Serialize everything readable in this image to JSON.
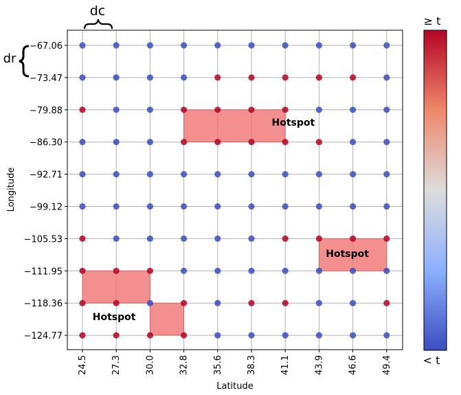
{
  "chart_data": {
    "type": "scatter",
    "title": "",
    "xlabel": "Latitude",
    "ylabel": "Longitude",
    "x_ticks": [
      "24.5",
      "27.3",
      "30.0",
      "32.8",
      "35.6",
      "38.3",
      "41.1",
      "43.9",
      "46.6",
      "49.4"
    ],
    "y_ticks": [
      "−67.06",
      "−73.47",
      "−79.88",
      "−86.30",
      "−92.71",
      "−99.12",
      "−105.53",
      "−111.95",
      "−118.36",
      "−124.77"
    ],
    "x_values": [
      24.5,
      27.3,
      30.0,
      32.8,
      35.6,
      38.3,
      41.1,
      43.9,
      46.6,
      49.4
    ],
    "y_values": [
      -67.06,
      -73.47,
      -79.88,
      -86.3,
      -92.71,
      -99.12,
      -105.53,
      -111.95,
      -118.36,
      -124.77
    ],
    "grid": true,
    "colorbar": {
      "top_label": "≥ t",
      "bottom_label": "< t",
      "cmap": "coolwarm"
    },
    "high_points": [
      [
        1,
        4
      ],
      [
        1,
        5
      ],
      [
        1,
        6
      ],
      [
        1,
        7
      ],
      [
        1,
        8
      ],
      [
        2,
        0
      ],
      [
        2,
        3
      ],
      [
        2,
        4
      ],
      [
        2,
        5
      ],
      [
        2,
        6
      ],
      [
        3,
        3
      ],
      [
        3,
        4
      ],
      [
        3,
        5
      ],
      [
        3,
        6
      ],
      [
        3,
        7
      ],
      [
        6,
        0
      ],
      [
        6,
        6
      ],
      [
        6,
        7
      ],
      [
        6,
        8
      ],
      [
        6,
        9
      ],
      [
        7,
        0
      ],
      [
        7,
        1
      ],
      [
        7,
        2
      ],
      [
        8,
        0
      ],
      [
        8,
        1
      ],
      [
        8,
        3
      ],
      [
        8,
        5
      ],
      [
        8,
        6
      ],
      [
        8,
        9
      ],
      [
        9,
        0
      ],
      [
        9,
        1
      ],
      [
        9,
        2
      ],
      [
        9,
        3
      ]
    ],
    "hotspots": [
      {
        "label": "Hotspot",
        "cells": [
          [
            1,
            4
          ],
          [
            1,
            6
          ],
          [
            2,
            3
          ],
          [
            3,
            6
          ]
        ]
      },
      {
        "label": "Hotspot",
        "cells": [
          [
            6,
            7
          ],
          [
            7,
            9
          ]
        ]
      },
      {
        "label": "Hotspot",
        "cells": [
          [
            7,
            0
          ],
          [
            8,
            2
          ],
          [
            8,
            2
          ],
          [
            9,
            3
          ]
        ]
      }
    ],
    "annotations": {
      "col_spacing": "dc",
      "row_spacing": "dr"
    }
  },
  "colors": {
    "low": "#3b4cc0",
    "high": "#b40426",
    "hotspot_fill": "#f07070",
    "grid": "#b0b0b0"
  }
}
